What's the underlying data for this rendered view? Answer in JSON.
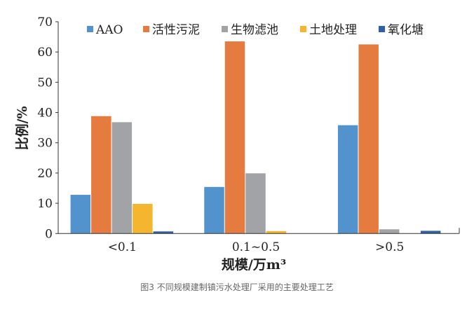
{
  "chart_data": {
    "type": "bar",
    "title": "",
    "xlabel": "规模/万m³",
    "ylabel": "比例/%",
    "ylim": [
      0,
      70
    ],
    "yticks": [
      0,
      10,
      20,
      30,
      40,
      50,
      60,
      70
    ],
    "categories": [
      "<0.1",
      "0.1~0.5",
      ">0.5"
    ],
    "legend_position": "top",
    "grid": false,
    "series": [
      {
        "name": "AAO",
        "color": "#5393cd",
        "values": [
          12.8,
          15.4,
          35.8
        ]
      },
      {
        "name": "活性污泥",
        "color": "#e57b3f",
        "values": [
          38.8,
          63.5,
          62.5
        ]
      },
      {
        "name": "生物滤池",
        "color": "#a2a3a6",
        "values": [
          36.8,
          19.9,
          1.4
        ]
      },
      {
        "name": "土地处理",
        "color": "#f5b52e",
        "values": [
          9.8,
          0.8,
          0
        ]
      },
      {
        "name": "氧化塘",
        "color": "#2e5fa8",
        "values": [
          0.7,
          0,
          0.9
        ]
      }
    ]
  },
  "caption": "图3 不同规模建制镇污水处理厂采用的主要处理工艺"
}
